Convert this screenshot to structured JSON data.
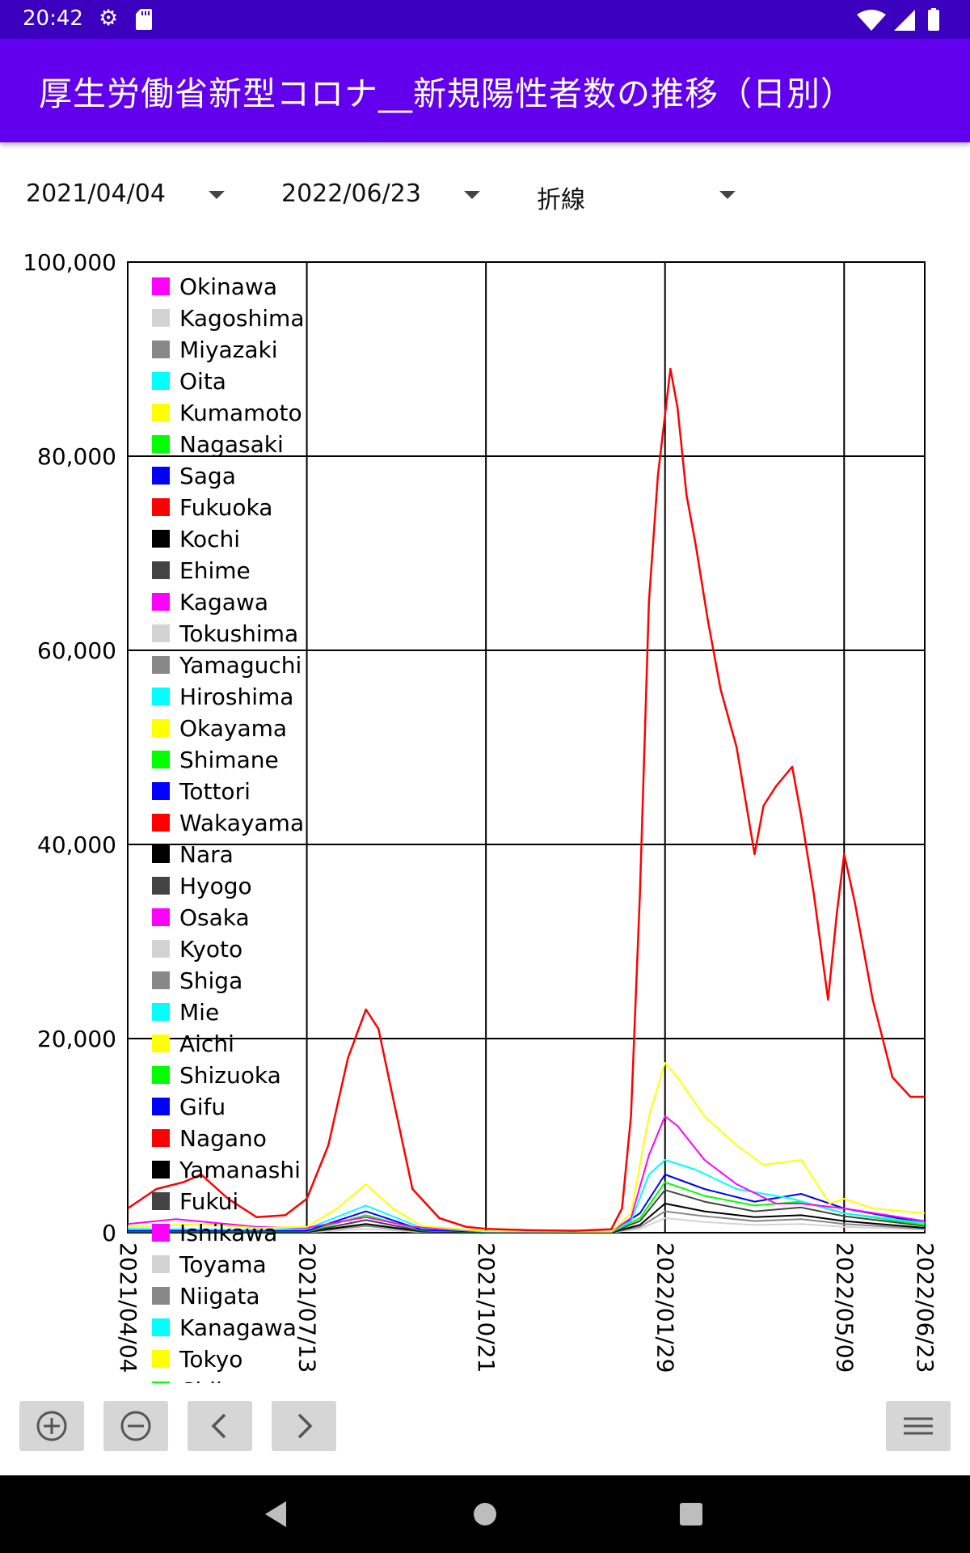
{
  "status_bar": {
    "time": "20:42",
    "icons": [
      "gear-icon",
      "sd-card-icon",
      "wifi-icon",
      "signal-icon",
      "battery-icon"
    ]
  },
  "app_bar": {
    "title": "厚生労働省新型コロナ__新規陽性者数の推移（日別）",
    "color": "#6200ee",
    "status_color": "#3c00bf"
  },
  "controls": {
    "start_date": "2021/04/04",
    "end_date": "2022/06/23",
    "chart_type": "折線"
  },
  "chart_data": {
    "type": "line",
    "ylim": [
      0,
      100000
    ],
    "y_ticks": [
      "100,000",
      "80,000",
      "60,000",
      "40,000",
      "20,000",
      "0"
    ],
    "x_ticks": [
      "2021/04/04",
      "2021/07/13",
      "2021/10/21",
      "2022/01/29",
      "2022/05/09",
      "2022/06/23"
    ],
    "grid": true,
    "legend_position": "top-left",
    "legend": [
      {
        "name": "Okinawa",
        "color": "#ff00ff"
      },
      {
        "name": "Kagoshima",
        "color": "#d3d3d3"
      },
      {
        "name": "Miyazaki",
        "color": "#888888"
      },
      {
        "name": "Oita",
        "color": "#00ffff"
      },
      {
        "name": "Kumamoto",
        "color": "#ffff00"
      },
      {
        "name": "Nagasaki",
        "color": "#00ff00"
      },
      {
        "name": "Saga",
        "color": "#0000ff"
      },
      {
        "name": "Fukuoka",
        "color": "#ff0000"
      },
      {
        "name": "Kochi",
        "color": "#000000"
      },
      {
        "name": "Ehime",
        "color": "#444444"
      },
      {
        "name": "Kagawa",
        "color": "#ff00ff"
      },
      {
        "name": "Tokushima",
        "color": "#d3d3d3"
      },
      {
        "name": "Yamaguchi",
        "color": "#888888"
      },
      {
        "name": "Hiroshima",
        "color": "#00ffff"
      },
      {
        "name": "Okayama",
        "color": "#ffff00"
      },
      {
        "name": "Shimane",
        "color": "#00ff00"
      },
      {
        "name": "Tottori",
        "color": "#0000ff"
      },
      {
        "name": "Wakayama",
        "color": "#ff0000"
      },
      {
        "name": "Nara",
        "color": "#000000"
      },
      {
        "name": "Hyogo",
        "color": "#444444"
      },
      {
        "name": "Osaka",
        "color": "#ff00ff"
      },
      {
        "name": "Kyoto",
        "color": "#d3d3d3"
      },
      {
        "name": "Shiga",
        "color": "#888888"
      },
      {
        "name": "Mie",
        "color": "#00ffff"
      },
      {
        "name": "Aichi",
        "color": "#ffff00"
      },
      {
        "name": "Shizuoka",
        "color": "#00ff00"
      },
      {
        "name": "Gifu",
        "color": "#0000ff"
      },
      {
        "name": "Nagano",
        "color": "#ff0000"
      },
      {
        "name": "Yamanashi",
        "color": "#000000"
      },
      {
        "name": "Fukui",
        "color": "#444444"
      },
      {
        "name": "Ishikawa",
        "color": "#ff00ff"
      },
      {
        "name": "Toyama",
        "color": "#d3d3d3"
      },
      {
        "name": "Niigata",
        "color": "#888888"
      },
      {
        "name": "Kanagawa",
        "color": "#00ffff"
      },
      {
        "name": "Tokyo",
        "color": "#ffff00"
      },
      {
        "name": "Chiba",
        "color": "#00ff00"
      }
    ],
    "series": [
      {
        "color": "#ff0000",
        "x": [
          "2021/04/04",
          "2021/04/20",
          "2021/05/05",
          "2021/05/15",
          "2021/05/30",
          "2021/06/15",
          "2021/07/01",
          "2021/07/13",
          "2021/07/25",
          "2021/08/05",
          "2021/08/15",
          "2021/08/22",
          "2021/08/30",
          "2021/09/10",
          "2021/09/25",
          "2021/10/10",
          "2021/10/21",
          "2021/11/15",
          "2021/12/10",
          "2021/12/30",
          "2022/01/05",
          "2022/01/10",
          "2022/01/15",
          "2022/01/20",
          "2022/01/25",
          "2022/02/01",
          "2022/02/05",
          "2022/02/10",
          "2022/02/15",
          "2022/02/22",
          "2022/03/01",
          "2022/03/10",
          "2022/03/20",
          "2022/03/25",
          "2022/04/01",
          "2022/04/10",
          "2022/04/15",
          "2022/04/22",
          "2022/04/30",
          "2022/05/05",
          "2022/05/09",
          "2022/05/15",
          "2022/05/25",
          "2022/06/05",
          "2022/06/15",
          "2022/06/23"
        ],
        "y": [
          2500,
          4500,
          5200,
          6000,
          3500,
          1600,
          1800,
          3500,
          9000,
          18000,
          23000,
          21000,
          14000,
          4500,
          1500,
          600,
          400,
          250,
          200,
          350,
          2500,
          12000,
          35000,
          65000,
          78000,
          89000,
          85000,
          76000,
          71000,
          63000,
          56000,
          50000,
          39000,
          44000,
          46000,
          48000,
          43000,
          35000,
          24000,
          33000,
          39000,
          34000,
          24000,
          16000,
          14000,
          14000
        ]
      },
      {
        "color": "#ffff00",
        "x": [
          "2021/04/04",
          "2021/05/15",
          "2021/06/15",
          "2021/07/13",
          "2021/07/30",
          "2021/08/15",
          "2021/08/30",
          "2021/09/15",
          "2021/10/21",
          "2021/12/30",
          "2022/01/10",
          "2022/01/20",
          "2022/01/29",
          "2022/02/05",
          "2022/02/20",
          "2022/03/10",
          "2022/03/25",
          "2022/04/15",
          "2022/05/01",
          "2022/05/09",
          "2022/05/25",
          "2022/06/23"
        ],
        "y": [
          600,
          900,
          500,
          600,
          2500,
          5000,
          2500,
          700,
          150,
          100,
          2000,
          12000,
          17500,
          16000,
          12000,
          9000,
          7000,
          7500,
          3000,
          3500,
          2500,
          2000
        ]
      },
      {
        "color": "#ff00ff",
        "x": [
          "2021/04/04",
          "2021/05/01",
          "2021/06/15",
          "2021/07/13",
          "2021/08/15",
          "2021/09/10",
          "2021/10/21",
          "2021/12/30",
          "2022/01/10",
          "2022/01/20",
          "2022/01/29",
          "2022/02/05",
          "2022/02/20",
          "2022/03/10",
          "2022/04/01",
          "2022/04/15",
          "2022/05/09",
          "2022/06/23"
        ],
        "y": [
          900,
          1400,
          600,
          500,
          1600,
          600,
          150,
          100,
          1500,
          8000,
          12000,
          11000,
          7500,
          5000,
          3000,
          3000,
          2500,
          1200
        ]
      },
      {
        "color": "#00ffff",
        "x": [
          "2021/04/04",
          "2021/06/15",
          "2021/07/13",
          "2021/08/15",
          "2021/09/15",
          "2021/10/21",
          "2021/12/30",
          "2022/01/10",
          "2022/01/20",
          "2022/01/29",
          "2022/02/15",
          "2022/03/10",
          "2022/04/10",
          "2022/05/09",
          "2022/06/23"
        ],
        "y": [
          400,
          300,
          400,
          2800,
          500,
          100,
          100,
          1200,
          6000,
          7500,
          6500,
          4500,
          3500,
          2000,
          1000
        ]
      },
      {
        "color": "#0000ff",
        "x": [
          "2021/04/04",
          "2021/07/13",
          "2021/08/15",
          "2021/09/15",
          "2021/10/21",
          "2021/12/30",
          "2022/01/15",
          "2022/01/29",
          "2022/02/20",
          "2022/03/20",
          "2022/04/15",
          "2022/05/09",
          "2022/06/23"
        ],
        "y": [
          200,
          200,
          2200,
          300,
          80,
          80,
          2000,
          6000,
          4500,
          3200,
          4000,
          2500,
          1000
        ]
      },
      {
        "color": "#00ff00",
        "x": [
          "2021/04/04",
          "2021/07/13",
          "2021/08/15",
          "2021/09/15",
          "2021/10/21",
          "2021/12/30",
          "2022/01/15",
          "2022/01/29",
          "2022/02/20",
          "2022/03/20",
          "2022/04/15",
          "2022/05/09",
          "2022/06/23"
        ],
        "y": [
          150,
          150,
          1800,
          250,
          60,
          60,
          1500,
          5200,
          3800,
          2800,
          3200,
          2000,
          800
        ]
      },
      {
        "color": "#444444",
        "x": [
          "2021/04/04",
          "2021/07/13",
          "2021/08/15",
          "2021/09/15",
          "2021/10/21",
          "2021/12/30",
          "2022/01/15",
          "2022/01/29",
          "2022/02/20",
          "2022/03/20",
          "2022/04/15",
          "2022/05/09",
          "2022/06/23"
        ],
        "y": [
          120,
          100,
          1300,
          200,
          50,
          50,
          1200,
          4400,
          3200,
          2200,
          2600,
          1700,
          700
        ]
      },
      {
        "color": "#000000",
        "x": [
          "2021/04/04",
          "2021/07/13",
          "2021/08/15",
          "2021/09/15",
          "2021/10/21",
          "2021/12/30",
          "2022/01/15",
          "2022/01/29",
          "2022/02/20",
          "2022/03/20",
          "2022/04/15",
          "2022/05/09",
          "2022/06/23"
        ],
        "y": [
          80,
          80,
          900,
          150,
          30,
          30,
          800,
          3000,
          2200,
          1600,
          1800,
          1200,
          500
        ]
      },
      {
        "color": "#888888",
        "x": [
          "2021/04/04",
          "2021/07/13",
          "2021/08/15",
          "2021/09/15",
          "2021/10/21",
          "2021/12/30",
          "2022/01/15",
          "2022/01/29",
          "2022/02/20",
          "2022/03/20",
          "2022/04/15",
          "2022/05/09",
          "2022/06/23"
        ],
        "y": [
          60,
          60,
          700,
          100,
          20,
          20,
          600,
          2200,
          1700,
          1200,
          1400,
          900,
          400
        ]
      },
      {
        "color": "#d3d3d3",
        "x": [
          "2021/04/04",
          "2021/07/13",
          "2021/08/15",
          "2021/09/15",
          "2021/10/21",
          "2021/12/30",
          "2022/01/15",
          "2022/01/29",
          "2022/02/20",
          "2022/03/20",
          "2022/04/15",
          "2022/05/09",
          "2022/06/23"
        ],
        "y": [
          40,
          40,
          400,
          60,
          10,
          10,
          400,
          1500,
          1100,
          800,
          900,
          600,
          300
        ]
      }
    ]
  },
  "toolbar": {
    "zoom_in_icon": "zoom-in-icon",
    "zoom_out_icon": "zoom-out-icon",
    "prev_icon": "chevron-left-icon",
    "next_icon": "chevron-right-icon",
    "menu_icon": "hamburger-menu-icon"
  },
  "nav_bar": {
    "icons": [
      "back-icon",
      "home-icon",
      "recents-icon"
    ]
  }
}
